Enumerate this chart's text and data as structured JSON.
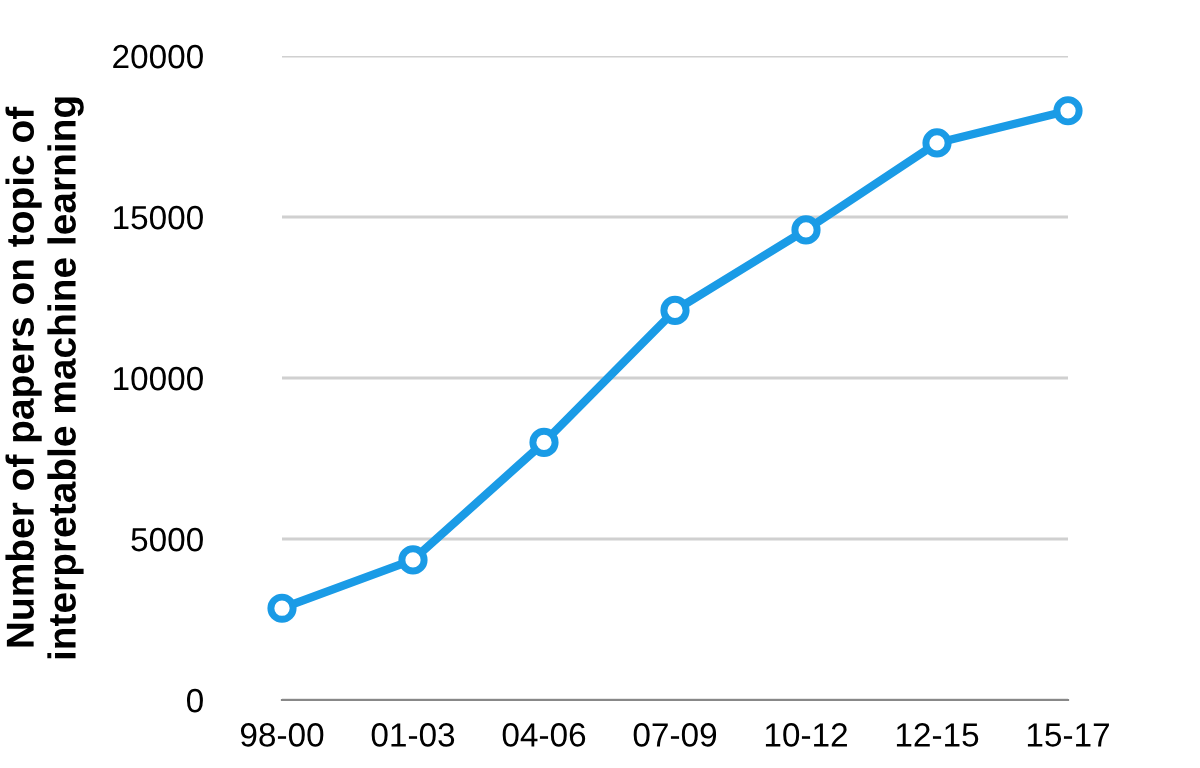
{
  "chart_data": {
    "type": "line",
    "ylabel": "Number of papers on topic of\ninterpretable machine learning",
    "categories": [
      "98-00",
      "01-03",
      "04-06",
      "07-09",
      "10-12",
      "12-15",
      "15-17"
    ],
    "series": [
      {
        "color": "#1a9be6",
        "values": [
          2850,
          4350,
          8000,
          12100,
          14600,
          17300,
          18300
        ]
      }
    ],
    "ylim": [
      0,
      20000
    ],
    "yticks": [
      0,
      5000,
      10000,
      15000,
      20000
    ],
    "grid": "y",
    "marker": "circle",
    "line_style": "solid"
  }
}
